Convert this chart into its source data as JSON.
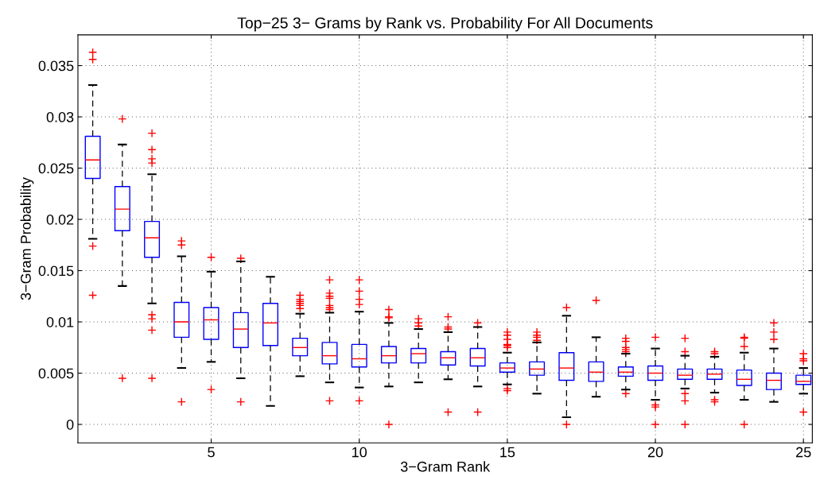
{
  "chart_data": {
    "type": "box",
    "title": "Top−25 3− Grams by Rank vs. Probability For All Documents",
    "xlabel": "3−Gram Rank",
    "ylabel": "3−Gram Probability",
    "categories": [
      null,
      null,
      null,
      null,
      "5",
      null,
      null,
      null,
      null,
      "10",
      null,
      null,
      null,
      null,
      "15",
      null,
      null,
      null,
      null,
      "20",
      null,
      null,
      null,
      null,
      "25"
    ],
    "ylim": [
      -0.0018,
      0.038
    ],
    "yticks": [
      0,
      0.005,
      0.01,
      0.015,
      0.02,
      0.025,
      0.03,
      0.035
    ],
    "grid": true,
    "marker": "cross",
    "series": [
      {
        "color": "#0000ff",
        "boxes": [
          {
            "low": 0.0181,
            "q1": 0.024,
            "median": 0.0258,
            "q3": 0.0281,
            "high": 0.0331,
            "outliers": [
              0.0363,
              0.0356,
              0.0174,
              0.0126
            ]
          },
          {
            "low": 0.0135,
            "q1": 0.0189,
            "median": 0.021,
            "q3": 0.0232,
            "high": 0.0273,
            "outliers": [
              0.0298,
              0.0045
            ]
          },
          {
            "low": 0.0118,
            "q1": 0.0163,
            "median": 0.0182,
            "q3": 0.0198,
            "high": 0.0244,
            "outliers": [
              0.0284,
              0.0268,
              0.0259,
              0.0255,
              0.0107,
              0.0103,
              0.0092,
              0.0045
            ]
          },
          {
            "low": 0.0055,
            "q1": 0.0085,
            "median": 0.01,
            "q3": 0.0119,
            "high": 0.0164,
            "outliers": [
              0.0179,
              0.0175,
              0.0022
            ]
          },
          {
            "low": 0.0061,
            "q1": 0.0083,
            "median": 0.0102,
            "q3": 0.0114,
            "high": 0.0149,
            "outliers": [
              0.0163,
              0.0034
            ]
          },
          {
            "low": 0.0045,
            "q1": 0.0075,
            "median": 0.0093,
            "q3": 0.0109,
            "high": 0.0159,
            "outliers": [
              0.0162,
              0.0022
            ]
          },
          {
            "low": 0.0018,
            "q1": 0.0077,
            "median": 0.0099,
            "q3": 0.0118,
            "high": 0.0144
          },
          {
            "low": 0.0047,
            "q1": 0.0067,
            "median": 0.0075,
            "q3": 0.0084,
            "high": 0.0108,
            "outliers": [
              0.0126,
              0.0122,
              0.012,
              0.0118,
              0.0116,
              0.0113
            ]
          },
          {
            "low": 0.0041,
            "q1": 0.0059,
            "median": 0.0067,
            "q3": 0.008,
            "high": 0.0109,
            "outliers": [
              0.0141,
              0.0128,
              0.0125,
              0.0123,
              0.0116,
              0.0114,
              0.0112,
              0.0023
            ]
          },
          {
            "low": 0.0036,
            "q1": 0.0056,
            "median": 0.0064,
            "q3": 0.0078,
            "high": 0.011,
            "outliers": [
              0.0141,
              0.013,
              0.0122,
              0.0117,
              0.0023
            ]
          },
          {
            "low": 0.0037,
            "q1": 0.006,
            "median": 0.0067,
            "q3": 0.0076,
            "high": 0.0099,
            "outliers": [
              0.0112,
              0.0105,
              0.0104,
              0
            ]
          },
          {
            "low": 0.0041,
            "q1": 0.006,
            "median": 0.0069,
            "q3": 0.0074,
            "high": 0.0093,
            "outliers": [
              0.0103,
              0.0099,
              0.0096
            ]
          },
          {
            "low": 0.0044,
            "q1": 0.0058,
            "median": 0.0065,
            "q3": 0.0071,
            "high": 0.009,
            "outliers": [
              0.0105,
              0.0095,
              0.0093,
              0.0012
            ]
          },
          {
            "low": 0.0037,
            "q1": 0.0057,
            "median": 0.0065,
            "q3": 0.0074,
            "high": 0.0095,
            "outliers": [
              0.0099,
              0.0012
            ]
          },
          {
            "low": 0.0039,
            "q1": 0.0051,
            "median": 0.0055,
            "q3": 0.006,
            "high": 0.007,
            "outliers": [
              0.009,
              0.0087,
              0.0083,
              0.0078,
              0.0077,
              0.0075,
              0.0035,
              0.0033
            ]
          },
          {
            "low": 0.003,
            "q1": 0.0048,
            "median": 0.0054,
            "q3": 0.0061,
            "high": 0.008,
            "outliers": [
              0.009,
              0.0087,
              0.0085,
              0.0082
            ]
          },
          {
            "low": 0.0007,
            "q1": 0.0043,
            "median": 0.0055,
            "q3": 0.007,
            "high": 0.0106,
            "outliers": [
              0.0114,
              0
            ]
          },
          {
            "low": 0.0027,
            "q1": 0.0042,
            "median": 0.0051,
            "q3": 0.0061,
            "high": 0.0085,
            "outliers": [
              0.0121
            ]
          },
          {
            "low": 0.0034,
            "q1": 0.0047,
            "median": 0.0051,
            "q3": 0.0056,
            "high": 0.0069,
            "outliers": [
              0.0084,
              0.0081,
              0.0075,
              0.0073,
              0.0071,
              0.003
            ]
          },
          {
            "low": 0.0024,
            "q1": 0.0043,
            "median": 0.005,
            "q3": 0.0057,
            "high": 0.0074,
            "outliers": [
              0.0085,
              0.0019,
              0.0017,
              0
            ]
          },
          {
            "low": 0.0035,
            "q1": 0.0044,
            "median": 0.0048,
            "q3": 0.0054,
            "high": 0.0067,
            "outliers": [
              0.0084,
              0.0071,
              0.003,
              0.0023,
              0
            ]
          },
          {
            "low": 0.0031,
            "q1": 0.0044,
            "median": 0.0049,
            "q3": 0.0054,
            "high": 0.0066,
            "outliers": [
              0.0071,
              0.0069,
              0.0024,
              0.0022
            ]
          },
          {
            "low": 0.0024,
            "q1": 0.0038,
            "median": 0.0044,
            "q3": 0.0053,
            "high": 0.007,
            "outliers": [
              0.0085,
              0.0084,
              0.0076,
              0
            ]
          },
          {
            "low": 0.0022,
            "q1": 0.0034,
            "median": 0.0043,
            "q3": 0.005,
            "high": 0.0074,
            "outliers": [
              0.0099,
              0.009,
              0.0083
            ]
          },
          {
            "low": 0.003,
            "q1": 0.0039,
            "median": 0.0042,
            "q3": 0.0048,
            "high": 0.0055,
            "outliers": [
              0.0069,
              0.0064,
              0.0062,
              0.0012
            ]
          }
        ]
      }
    ]
  }
}
